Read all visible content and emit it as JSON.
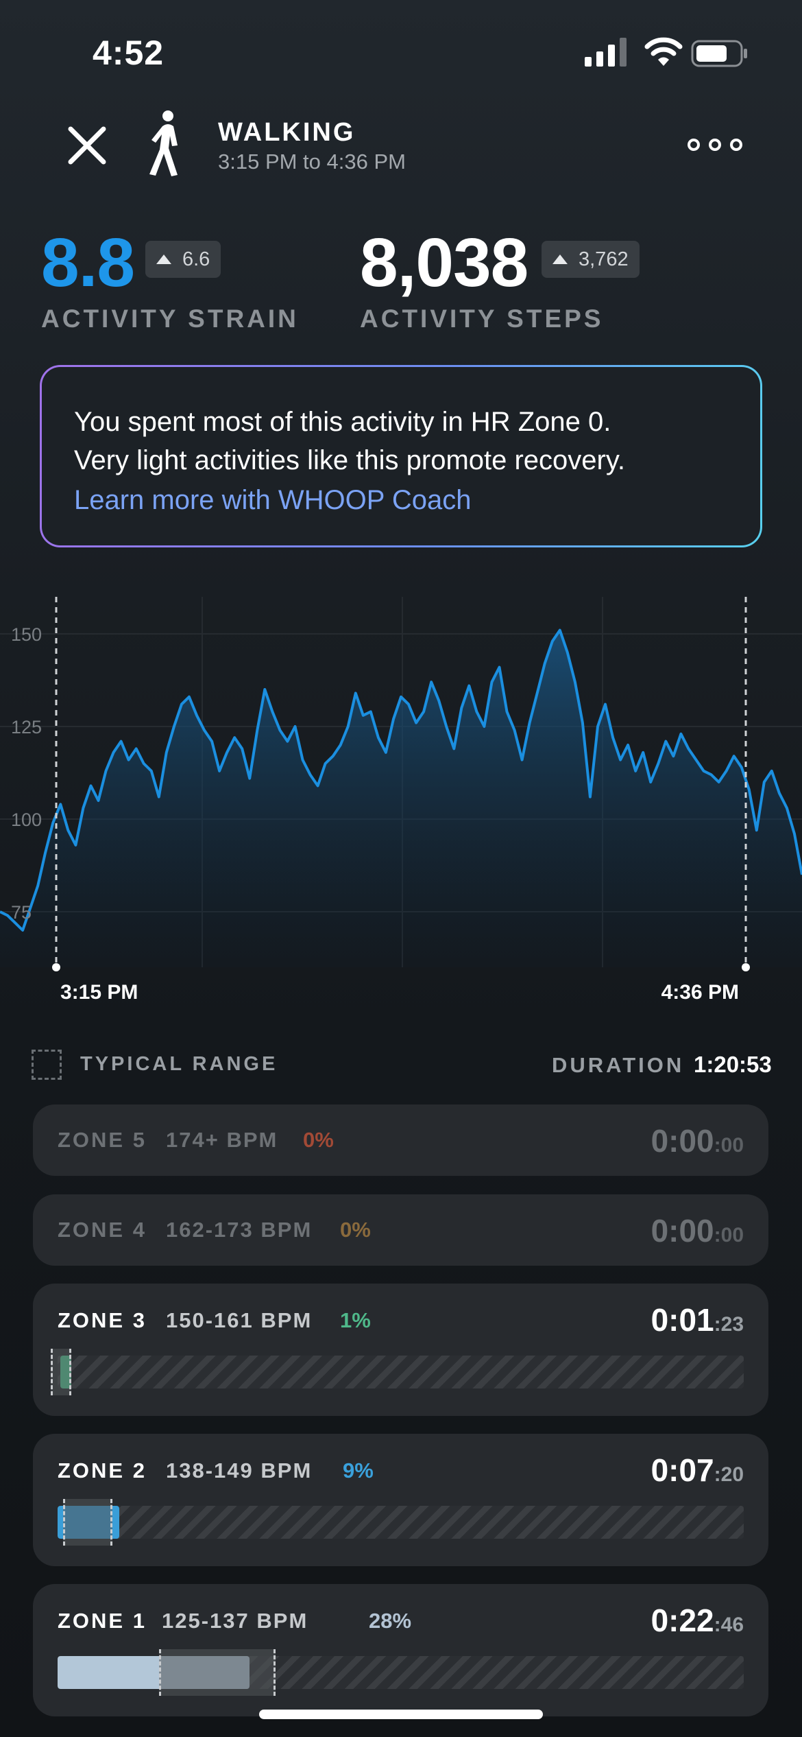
{
  "status_bar": {
    "time": "4:52"
  },
  "header": {
    "activity": "WALKING",
    "time_range": "3:15 PM to 4:36 PM",
    "icons": {
      "close": "close-icon",
      "activity": "walking-icon",
      "more": "more-icon"
    }
  },
  "metrics": {
    "strain": {
      "value": "8.8",
      "delta": "6.6",
      "label": "ACTIVITY STRAIN",
      "color": "#1e96ea"
    },
    "steps": {
      "value": "8,038",
      "delta": "3,762",
      "label": "ACTIVITY STEPS"
    }
  },
  "coach": {
    "line1": "You spent most of this activity in HR Zone 0.",
    "line2": "Very light activities like this promote recovery.",
    "link": "Learn more with WHOOP Coach"
  },
  "chart_data": {
    "type": "area",
    "y_ticks": [
      "150",
      "125",
      "100",
      "75"
    ],
    "ylim": [
      60,
      160
    ],
    "start_label": "3:15 PM",
    "end_label": "4:36 PM",
    "series_color": "#1b8fe0",
    "y": [
      75,
      74,
      72,
      70,
      76,
      82,
      91,
      99,
      104,
      97,
      93,
      103,
      109,
      105,
      113,
      118,
      121,
      116,
      119,
      115,
      113,
      106,
      118,
      125,
      131,
      133,
      128,
      124,
      121,
      113,
      118,
      122,
      119,
      111,
      124,
      135,
      129,
      124,
      121,
      125,
      116,
      112,
      109,
      115,
      117,
      120,
      125,
      134,
      128,
      129,
      122,
      118,
      127,
      133,
      131,
      126,
      129,
      137,
      132,
      125,
      119,
      130,
      136,
      129,
      125,
      137,
      141,
      129,
      124,
      116,
      126,
      134,
      142,
      148,
      151,
      145,
      137,
      126,
      106,
      125,
      131,
      122,
      116,
      120,
      113,
      118,
      110,
      115,
      121,
      117,
      123,
      119,
      116,
      113,
      112,
      110,
      113,
      117,
      114,
      108,
      97,
      110,
      113,
      107,
      103,
      96,
      85
    ]
  },
  "legend": {
    "typical_range": "TYPICAL RANGE",
    "duration_label": "DURATION",
    "duration_value": "1:20:53"
  },
  "zones": [
    {
      "name": "ZONE 5",
      "bpm": "174+ BPM",
      "pct": "0%",
      "pct_color": "#a24a36",
      "time_main": "0:00",
      "time_sec": ":00"
    },
    {
      "name": "ZONE 4",
      "bpm": "162-173 BPM",
      "pct": "0%",
      "pct_color": "#8a6a3c",
      "time_main": "0:00",
      "time_sec": ":00"
    },
    {
      "name": "ZONE 3",
      "bpm": "150-161 BPM",
      "pct": "1%",
      "pct_color": "#4fb88a",
      "time_main": "0:01",
      "time_sec": ":23",
      "bar_color": "#4fc790"
    },
    {
      "name": "ZONE 2",
      "bpm": "138-149 BPM",
      "pct": "9%",
      "pct_color": "#3aa1dc",
      "time_main": "0:07",
      "time_sec": ":20",
      "bar_color": "#3a9ed8"
    },
    {
      "name": "ZONE 1",
      "bpm": "125-137 BPM",
      "pct": "28%",
      "pct_color": "#b4c4d4",
      "time_main": "0:22",
      "time_sec": ":46",
      "bar_color": "#b3c7d8"
    }
  ]
}
